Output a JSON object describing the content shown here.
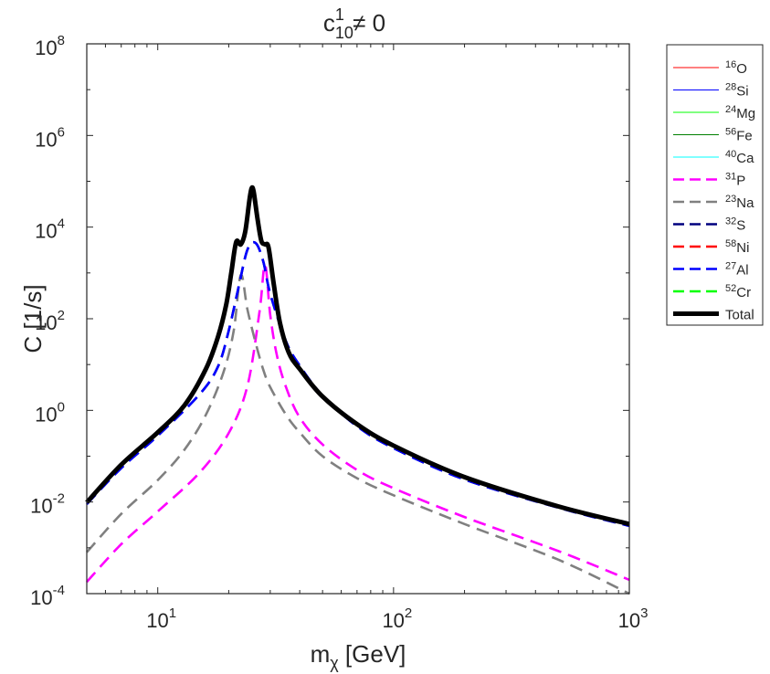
{
  "chart_data": {
    "type": "line",
    "title": {
      "base": "c",
      "sup": "1",
      "sub": "10",
      "rest": " ≠ 0"
    },
    "xlabel": {
      "base": "m",
      "sub": "χ",
      "rest": " [GeV]"
    },
    "ylabel": "C [1/s]",
    "x_scale": "log",
    "y_scale": "log",
    "xlim": [
      5,
      1000
    ],
    "ylim": [
      0.0001,
      100000000
    ],
    "x_ticks": [
      {
        "value": 10,
        "base": "10",
        "exp": "1"
      },
      {
        "value": 100,
        "base": "10",
        "exp": "2"
      },
      {
        "value": 1000,
        "base": "10",
        "exp": "3"
      }
    ],
    "y_ticks": [
      {
        "value": 0.0001,
        "base": "10",
        "exp": "-4"
      },
      {
        "value": 0.01,
        "base": "10",
        "exp": "-2"
      },
      {
        "value": 1,
        "base": "10",
        "exp": "0"
      },
      {
        "value": 100,
        "base": "10",
        "exp": "2"
      },
      {
        "value": 10000,
        "base": "10",
        "exp": "4"
      },
      {
        "value": 1000000,
        "base": "10",
        "exp": "6"
      },
      {
        "value": 100000000,
        "base": "10",
        "exp": "8"
      }
    ],
    "grid": false,
    "legend_position": "outside-right",
    "series": [
      {
        "name": "16O",
        "sup": "16",
        "el": "O",
        "color": "#ff0000",
        "style": "solid",
        "width": "thin",
        "x": [],
        "y": []
      },
      {
        "name": "28Si",
        "sup": "28",
        "el": "Si",
        "color": "#0000ff",
        "style": "solid",
        "width": "thin",
        "x": [],
        "y": []
      },
      {
        "name": "24Mg",
        "sup": "24",
        "el": "Mg",
        "color": "#00ff00",
        "style": "solid",
        "width": "thin",
        "x": [],
        "y": []
      },
      {
        "name": "56Fe",
        "sup": "56",
        "el": "Fe",
        "color": "#008000",
        "style": "solid",
        "width": "thin",
        "x": [],
        "y": []
      },
      {
        "name": "40Ca",
        "sup": "40",
        "el": "Ca",
        "color": "#00ffff",
        "style": "solid",
        "width": "thin",
        "x": [],
        "y": []
      },
      {
        "name": "31P",
        "sup": "31",
        "el": "P",
        "color": "#ff00ff",
        "style": "dashed",
        "width": "medium",
        "x": [
          5,
          7,
          10,
          15,
          20,
          24,
          27,
          28.5,
          30,
          32,
          35,
          40,
          50,
          70,
          100,
          200,
          500,
          1000
        ],
        "y": [
          0.00018,
          0.0012,
          0.0062,
          0.043,
          0.32,
          3.4,
          140,
          1500,
          120,
          16,
          3.2,
          0.7,
          0.18,
          0.05,
          0.02,
          0.0047,
          0.00085,
          0.0002
        ]
      },
      {
        "name": "23Na",
        "sup": "23",
        "el": "Na",
        "color": "#808080",
        "style": "dashed",
        "width": "medium",
        "x": [
          5,
          7,
          10,
          13,
          16,
          19,
          21,
          22.5,
          24,
          26,
          28,
          30,
          35,
          40,
          50,
          70,
          100,
          200,
          500,
          1000
        ],
        "y": [
          0.0008,
          0.0055,
          0.03,
          0.14,
          0.8,
          6.8,
          55,
          900,
          160,
          30,
          7.8,
          3.2,
          0.8,
          0.33,
          0.1,
          0.033,
          0.014,
          0.0033,
          0.00055,
          0.0001
        ]
      },
      {
        "name": "32S",
        "sup": "32",
        "el": "S",
        "color": "#00007f",
        "style": "dashed",
        "width": "medium",
        "x": [
          5,
          7,
          10,
          15,
          18,
          20,
          22,
          24,
          26,
          28,
          30,
          35,
          40,
          50,
          70,
          100,
          200,
          500,
          1000
        ],
        "y": [
          0.009,
          0.055,
          0.28,
          2.2,
          9,
          55,
          480,
          3200,
          4500,
          1800,
          350,
          32,
          9.5,
          2.1,
          0.45,
          0.15,
          0.031,
          0.0075,
          0.003
        ]
      },
      {
        "name": "58Ni",
        "sup": "58",
        "el": "Ni",
        "color": "#ff0000",
        "style": "dashed",
        "width": "medium",
        "x": [],
        "y": []
      },
      {
        "name": "27Al",
        "sup": "27",
        "el": "Al",
        "color": "#0000ff",
        "style": "dashed",
        "width": "medium",
        "x": [
          5,
          7,
          10,
          15,
          18,
          20,
          22,
          24,
          26,
          28,
          30,
          35,
          40,
          50,
          70,
          100,
          200,
          500,
          1000
        ],
        "y": [
          0.009,
          0.055,
          0.28,
          2.2,
          9,
          55,
          480,
          3200,
          4500,
          1800,
          350,
          32,
          9.5,
          2.1,
          0.45,
          0.15,
          0.031,
          0.0075,
          0.003
        ]
      },
      {
        "name": "52Cr",
        "sup": "52",
        "el": "Cr",
        "color": "#00ff00",
        "style": "dashed",
        "width": "medium",
        "x": [],
        "y": []
      },
      {
        "name": "Total",
        "sup": "",
        "el": "Total",
        "color": "#000000",
        "style": "solid",
        "width": "thick",
        "x": [
          5,
          7,
          10,
          13,
          16,
          18,
          19.5,
          20.5,
          21.5,
          22.5,
          23.5,
          24.5,
          25,
          25.5,
          26.5,
          27.5,
          28.5,
          29.5,
          31,
          33,
          36,
          40,
          50,
          70,
          100,
          200,
          500,
          1000
        ],
        "y": [
          0.0098,
          0.065,
          0.33,
          1.3,
          8,
          40,
          200,
          1000,
          4700,
          4200,
          8000,
          40000,
          70000,
          60000,
          15000,
          5000,
          4200,
          3600,
          600,
          80,
          18,
          8,
          2,
          0.5,
          0.17,
          0.035,
          0.008,
          0.0033
        ]
      }
    ]
  }
}
